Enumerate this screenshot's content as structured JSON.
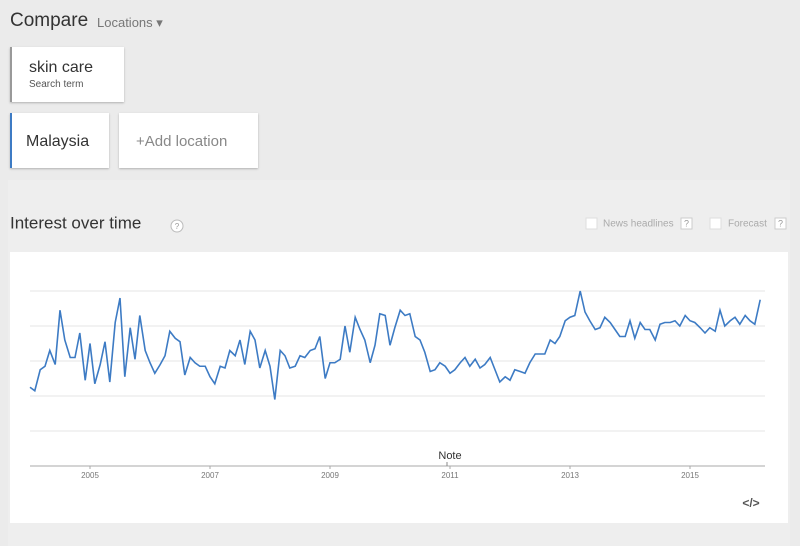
{
  "header": {
    "title": "Compare",
    "locations": "Locations"
  },
  "terms": [
    {
      "name": "skin care",
      "subtitle": "Search term"
    }
  ],
  "locations": [
    {
      "name": "Malaysia"
    }
  ],
  "add_location": "+Add location",
  "options": {
    "news": "News headlines",
    "forecast": "Forecast",
    "help": "?"
  },
  "embed": "</>",
  "chart_data": {
    "type": "line",
    "title": "Interest over time",
    "help": "?",
    "annotation": "Note",
    "xlim": [
      2004,
      2016.25
    ],
    "xticks": [
      2005,
      2007,
      2009,
      2011,
      2013,
      2015
    ],
    "ylim": [
      0,
      100
    ],
    "ygrid": [
      20,
      40,
      60,
      80,
      100
    ],
    "grid": true,
    "x": [
      2004.0,
      2004.08,
      2004.17,
      2004.25,
      2004.33,
      2004.42,
      2004.5,
      2004.58,
      2004.67,
      2004.75,
      2004.83,
      2004.92,
      2005.0,
      2005.08,
      2005.17,
      2005.25,
      2005.33,
      2005.42,
      2005.5,
      2005.58,
      2005.67,
      2005.75,
      2005.83,
      2005.92,
      2006.0,
      2006.08,
      2006.17,
      2006.25,
      2006.33,
      2006.42,
      2006.5,
      2006.58,
      2006.67,
      2006.75,
      2006.83,
      2006.92,
      2007.0,
      2007.08,
      2007.17,
      2007.25,
      2007.33,
      2007.42,
      2007.5,
      2007.58,
      2007.67,
      2007.75,
      2007.83,
      2007.92,
      2008.0,
      2008.08,
      2008.17,
      2008.25,
      2008.33,
      2008.42,
      2008.5,
      2008.58,
      2008.67,
      2008.75,
      2008.83,
      2008.92,
      2009.0,
      2009.08,
      2009.17,
      2009.25,
      2009.33,
      2009.42,
      2009.5,
      2009.58,
      2009.67,
      2009.75,
      2009.83,
      2009.92,
      2010.0,
      2010.08,
      2010.17,
      2010.25,
      2010.33,
      2010.42,
      2010.5,
      2010.58,
      2010.67,
      2010.75,
      2010.83,
      2010.92,
      2011.0,
      2011.08,
      2011.17,
      2011.25,
      2011.33,
      2011.42,
      2011.5,
      2011.58,
      2011.67,
      2011.75,
      2011.83,
      2011.92,
      2012.0,
      2012.08,
      2012.17,
      2012.25,
      2012.33,
      2012.42,
      2012.5,
      2012.58,
      2012.67,
      2012.75,
      2012.83,
      2012.92,
      2013.0,
      2013.08,
      2013.17,
      2013.25,
      2013.33,
      2013.42,
      2013.5,
      2013.58,
      2013.67,
      2013.75,
      2013.83,
      2013.92,
      2014.0,
      2014.08,
      2014.17,
      2014.25,
      2014.33,
      2014.42,
      2014.5,
      2014.58,
      2014.67,
      2014.75,
      2014.83,
      2014.92,
      2015.0,
      2015.08,
      2015.17,
      2015.25,
      2015.33,
      2015.42,
      2015.5,
      2015.58,
      2015.67,
      2015.75,
      2015.83,
      2015.92,
      2016.0,
      2016.08,
      2016.17
    ],
    "series": [
      {
        "name": "skin care",
        "color": "#3d7bc4",
        "values": [
          45,
          43,
          55,
          57,
          66,
          58,
          89,
          72,
          62,
          62,
          76,
          49,
          70,
          47,
          58,
          71,
          48,
          82,
          96,
          51,
          79,
          61,
          86,
          66,
          59,
          53,
          58,
          63,
          77,
          73,
          71,
          52,
          62,
          59,
          57,
          57,
          51,
          47,
          57,
          56,
          66,
          63,
          72,
          58,
          77,
          72,
          56,
          66,
          57,
          38,
          66,
          63,
          56,
          57,
          63,
          62,
          66,
          67,
          74,
          50,
          59,
          59,
          61,
          80,
          65,
          85,
          78,
          72,
          59,
          69,
          87,
          86,
          69,
          79,
          89,
          86,
          87,
          74,
          72,
          65,
          54,
          55,
          59,
          57,
          53,
          55,
          59,
          62,
          57,
          61,
          56,
          58,
          62,
          55,
          48,
          51,
          49,
          55,
          54,
          53,
          59,
          64,
          64,
          64,
          72,
          70,
          74,
          83,
          85,
          86,
          100,
          88,
          83,
          78,
          79,
          85,
          82,
          78,
          74,
          74,
          83,
          73,
          82,
          78,
          78,
          72,
          81,
          82,
          82,
          83,
          80,
          86,
          83,
          82,
          79,
          76,
          79,
          77,
          89,
          80,
          83,
          85,
          81,
          86,
          83,
          81,
          95
        ]
      }
    ]
  }
}
